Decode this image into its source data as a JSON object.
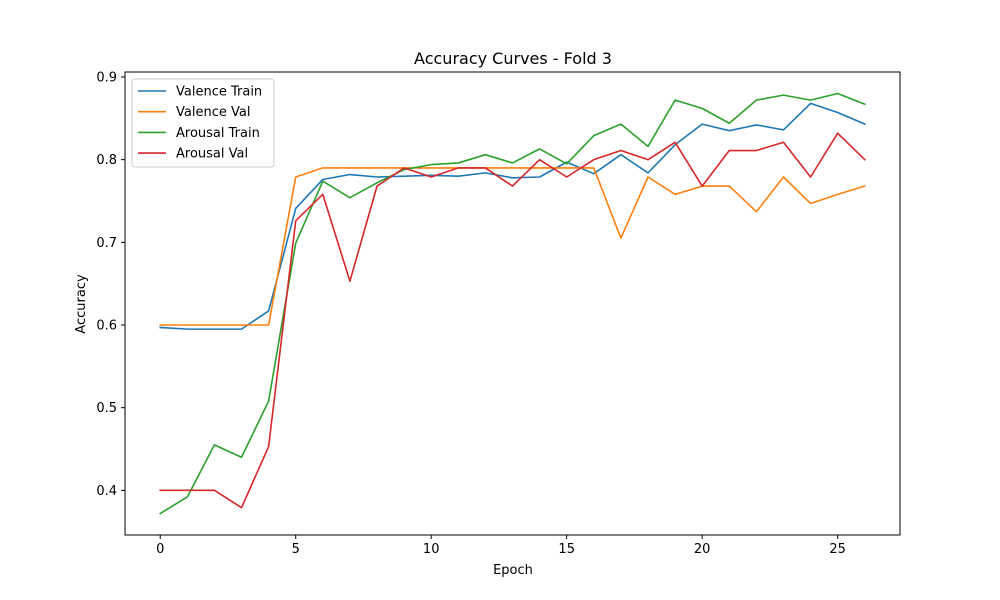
{
  "chart_data": {
    "type": "line",
    "title": "Accuracy Curves - Fold 3",
    "xlabel": "Epoch",
    "ylabel": "Accuracy",
    "xlim": [
      -1.3,
      27.3
    ],
    "ylim": [
      0.346,
      0.906
    ],
    "xticks": [
      0,
      5,
      10,
      15,
      20,
      25
    ],
    "yticks": [
      0.4,
      0.5,
      0.6,
      0.7,
      0.8,
      0.9
    ],
    "xtick_labels": [
      "0",
      "5",
      "10",
      "15",
      "20",
      "25"
    ],
    "ytick_labels": [
      "0.4",
      "0.5",
      "0.6",
      "0.7",
      "0.8",
      "0.9"
    ],
    "grid": false,
    "legend_position": "top-left",
    "x": [
      0,
      1,
      2,
      3,
      4,
      5,
      6,
      7,
      8,
      9,
      10,
      11,
      12,
      13,
      14,
      15,
      16,
      17,
      18,
      19,
      20,
      21,
      22,
      23,
      24,
      25,
      26
    ],
    "series": [
      {
        "name": "Valence Train",
        "color": "#1f77b4",
        "values": [
          0.597,
          0.595,
          0.595,
          0.595,
          0.617,
          0.741,
          0.776,
          0.782,
          0.779,
          0.78,
          0.781,
          0.78,
          0.784,
          0.778,
          0.779,
          0.797,
          0.783,
          0.806,
          0.784,
          0.818,
          0.843,
          0.835,
          0.842,
          0.836,
          0.868,
          0.857,
          0.843
        ]
      },
      {
        "name": "Valence Val",
        "color": "#ff7f0e",
        "values": [
          0.6,
          0.6,
          0.6,
          0.6,
          0.6,
          0.779,
          0.79,
          0.79,
          0.79,
          0.79,
          0.79,
          0.79,
          0.79,
          0.79,
          0.79,
          0.79,
          0.79,
          0.705,
          0.779,
          0.758,
          0.768,
          0.768,
          0.737,
          0.779,
          0.747,
          0.758,
          0.768
        ]
      },
      {
        "name": "Arousal Train",
        "color": "#2ca02c",
        "values": [
          0.372,
          0.392,
          0.455,
          0.44,
          0.508,
          0.699,
          0.774,
          0.754,
          0.772,
          0.788,
          0.794,
          0.796,
          0.806,
          0.796,
          0.813,
          0.795,
          0.829,
          0.843,
          0.816,
          0.872,
          0.862,
          0.844,
          0.872,
          0.878,
          0.872,
          0.88,
          0.867
        ]
      },
      {
        "name": "Arousal Val",
        "color": "#d62728",
        "values": [
          0.4,
          0.4,
          0.4,
          0.379,
          0.453,
          0.726,
          0.758,
          0.653,
          0.768,
          0.79,
          0.779,
          0.79,
          0.79,
          0.768,
          0.8,
          0.779,
          0.8,
          0.811,
          0.8,
          0.821,
          0.768,
          0.811,
          0.811,
          0.821,
          0.779,
          0.832,
          0.8
        ]
      }
    ]
  }
}
